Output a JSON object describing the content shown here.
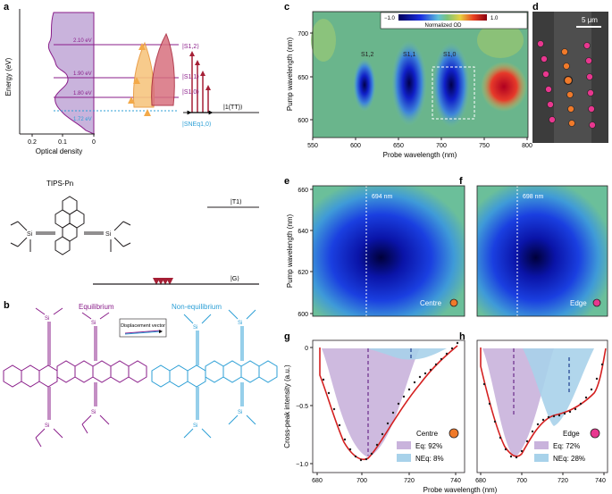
{
  "panel_labels": [
    "a",
    "b",
    "c",
    "d",
    "e",
    "f",
    "g",
    "h"
  ],
  "colors": {
    "purple": "#8a1e8a",
    "lavender": "#c9b3dc",
    "orange": "#f3a948",
    "red": "#a51f35",
    "cyan": "#2c9fd6",
    "navy": "#1d3f8f",
    "green_bg": "#6bb58a",
    "map_blue": "#1b2ec9"
  },
  "panel_a": {
    "y_axis_label": "Energy (eV)",
    "x_axis_label": "Optical density",
    "x_ticks": [
      "0.2",
      "0.1",
      "0"
    ],
    "energy_levels": [
      "2.10 eV",
      "1.90 eV",
      "1.80 eV",
      "1.72 eV"
    ],
    "state_labels": [
      "|S1,2⟩",
      "|S1,1⟩",
      "|S1,0⟩",
      "|SNEq1,0⟩",
      "|1(TT)⟩",
      "|T1⟩",
      "|G⟩"
    ],
    "molecule_name": "TIPS-Pn"
  },
  "panel_b": {
    "equilibrium_label": "Equilibrium",
    "non_equilibrium_label": "Non-equilibrium",
    "displacement_label": "Displacement vector"
  },
  "panel_c": {
    "colorbar_min": "−1.0",
    "colorbar_max": "1.0",
    "colorbar_label": "Normalized OD",
    "peak_labels": [
      "S1,2",
      "S1,1",
      "S1,0"
    ],
    "x_axis_label": "Probe wavelength (nm)",
    "y_axis_label": "Pump wavelength (nm)",
    "x_ticks": [
      "550",
      "600",
      "650",
      "700",
      "750",
      "800"
    ],
    "y_ticks": [
      "700",
      "650",
      "600"
    ]
  },
  "panel_d": {
    "scale_bar": "5 μm"
  },
  "panel_e": {
    "wavelength_marker": "694 nm",
    "position_label": "Centre",
    "y_axis_label": "Pump wavelength (nm)",
    "y_ticks": [
      "660",
      "640",
      "620",
      "600"
    ]
  },
  "panel_f": {
    "wavelength_marker": "698 nm",
    "position_label": "Edge"
  },
  "panel_g": {
    "position_label": "Centre",
    "legend": [
      "Eq: 92%",
      "NEq: 8%"
    ],
    "y_axis_label": "Cross-peak intensity (a.u.)",
    "x_ticks": [
      "680",
      "700",
      "720",
      "740"
    ],
    "y_ticks": [
      "0",
      "−0.5",
      "−1.0"
    ]
  },
  "panel_h": {
    "position_label": "Edge",
    "legend": [
      "Eq: 72%",
      "NEq: 28%"
    ],
    "x_ticks": [
      "680",
      "700",
      "720",
      "740"
    ]
  },
  "shared_x_axis_label": "Probe wavelength (nm)"
}
